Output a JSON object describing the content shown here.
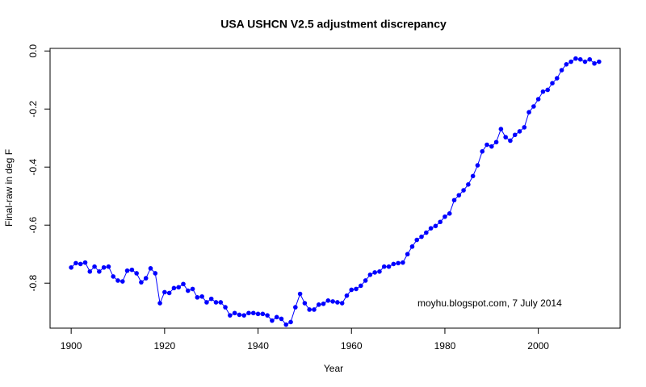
{
  "chart_data": {
    "type": "line",
    "title": "USA USHCN V2.5 adjustment discrepancy",
    "x_label": "Year",
    "y_label": "Final-raw in deg F",
    "annotation": "moyhu.blogspot.com, 7 July 2014",
    "x": [
      1900,
      1901,
      1902,
      1903,
      1904,
      1905,
      1906,
      1907,
      1908,
      1909,
      1910,
      1911,
      1912,
      1913,
      1914,
      1915,
      1916,
      1917,
      1918,
      1919,
      1920,
      1921,
      1922,
      1923,
      1924,
      1925,
      1926,
      1927,
      1928,
      1929,
      1930,
      1931,
      1932,
      1933,
      1934,
      1935,
      1936,
      1937,
      1938,
      1939,
      1940,
      1941,
      1942,
      1943,
      1944,
      1945,
      1946,
      1947,
      1948,
      1949,
      1950,
      1951,
      1952,
      1953,
      1954,
      1955,
      1956,
      1957,
      1958,
      1959,
      1960,
      1961,
      1962,
      1963,
      1964,
      1965,
      1966,
      1967,
      1968,
      1969,
      1970,
      1971,
      1972,
      1973,
      1974,
      1975,
      1976,
      1977,
      1978,
      1979,
      1980,
      1981,
      1982,
      1983,
      1984,
      1985,
      1986,
      1987,
      1988,
      1989,
      1990,
      1991,
      1992,
      1993,
      1994,
      1995,
      1996,
      1997,
      1998,
      1999,
      2000,
      2001,
      2002,
      2003,
      2004,
      2005,
      2006,
      2007,
      2008,
      2009,
      2010,
      2011,
      2012,
      2013
    ],
    "series": [
      {
        "color": "#0000ff",
        "values": [
          -0.746,
          -0.731,
          -0.734,
          -0.729,
          -0.76,
          -0.743,
          -0.76,
          -0.746,
          -0.743,
          -0.777,
          -0.791,
          -0.794,
          -0.757,
          -0.754,
          -0.766,
          -0.797,
          -0.783,
          -0.749,
          -0.766,
          -0.869,
          -0.831,
          -0.834,
          -0.817,
          -0.814,
          -0.803,
          -0.826,
          -0.82,
          -0.849,
          -0.846,
          -0.866,
          -0.854,
          -0.866,
          -0.866,
          -0.883,
          -0.911,
          -0.903,
          -0.909,
          -0.911,
          -0.903,
          -0.903,
          -0.906,
          -0.906,
          -0.911,
          -0.929,
          -0.917,
          -0.923,
          -0.943,
          -0.934,
          -0.883,
          -0.837,
          -0.869,
          -0.891,
          -0.891,
          -0.874,
          -0.871,
          -0.86,
          -0.863,
          -0.866,
          -0.869,
          -0.843,
          -0.823,
          -0.82,
          -0.809,
          -0.791,
          -0.771,
          -0.763,
          -0.76,
          -0.743,
          -0.743,
          -0.734,
          -0.731,
          -0.729,
          -0.7,
          -0.674,
          -0.651,
          -0.64,
          -0.626,
          -0.611,
          -0.603,
          -0.589,
          -0.571,
          -0.56,
          -0.514,
          -0.497,
          -0.48,
          -0.46,
          -0.431,
          -0.394,
          -0.346,
          -0.323,
          -0.329,
          -0.314,
          -0.269,
          -0.297,
          -0.309,
          -0.289,
          -0.277,
          -0.263,
          -0.211,
          -0.191,
          -0.166,
          -0.14,
          -0.134,
          -0.111,
          -0.094,
          -0.066,
          -0.046,
          -0.037,
          -0.026,
          -0.029,
          -0.037,
          -0.029,
          -0.043,
          -0.037
        ]
      }
    ],
    "xlim": [
      1895.48,
      2017.52
    ],
    "ylim": [
      -0.955,
      0.009
    ],
    "xticks": [
      1900,
      1920,
      1940,
      1960,
      1980,
      2000
    ],
    "yticks": [
      {
        "value": 0,
        "label": "0.0"
      },
      -0.2,
      -0.4,
      -0.6,
      -0.8
    ]
  }
}
